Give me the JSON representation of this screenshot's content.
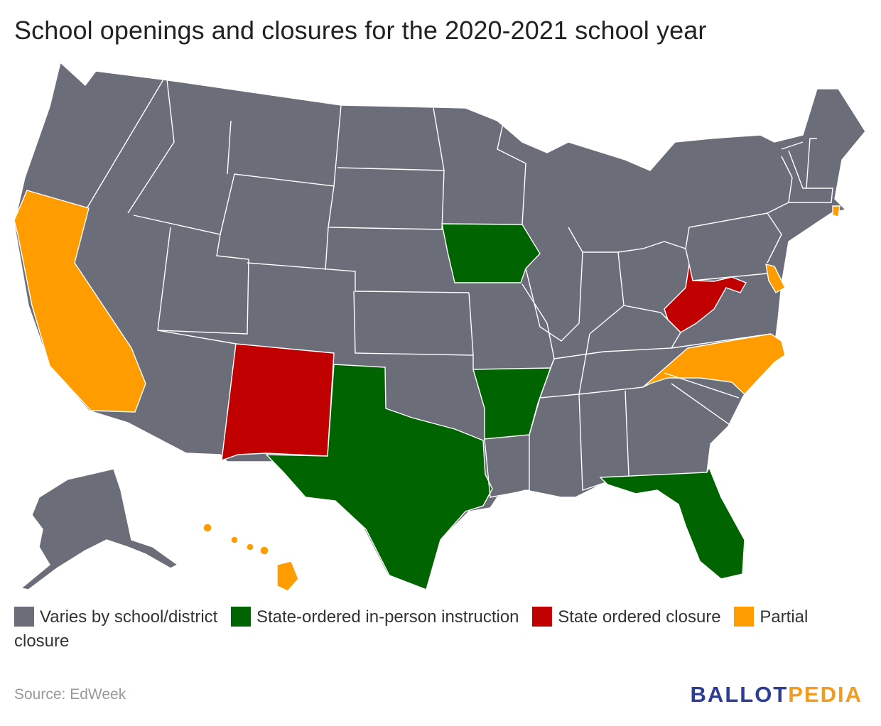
{
  "title": "School openings and closures for the 2020-2021 school year",
  "legend": [
    {
      "label": "Varies by school/district",
      "color": "#6b6d79"
    },
    {
      "label": "State-ordered in-person instruction",
      "color": "#006400"
    },
    {
      "label": "State ordered closure",
      "color": "#c00000"
    },
    {
      "label": "Partial closure",
      "color": "#ff9c00"
    }
  ],
  "colors": {
    "varies": "#6b6d79",
    "in_person": "#006400",
    "closure": "#c00000",
    "partial": "#ff9c00",
    "border": "#ffffff"
  },
  "states": {
    "California": "partial",
    "North Carolina": "partial",
    "Delaware": "partial",
    "Rhode Island": "partial",
    "Hawaii": "partial",
    "New Mexico": "closure",
    "West Virginia": "closure",
    "Texas": "in_person",
    "Iowa": "in_person",
    "Arkansas": "in_person",
    "Florida": "in_person",
    "Other states": "varies"
  },
  "source": "Source: EdWeek",
  "logo": {
    "part1": "BALLOT",
    "part2": "PEDIA"
  }
}
